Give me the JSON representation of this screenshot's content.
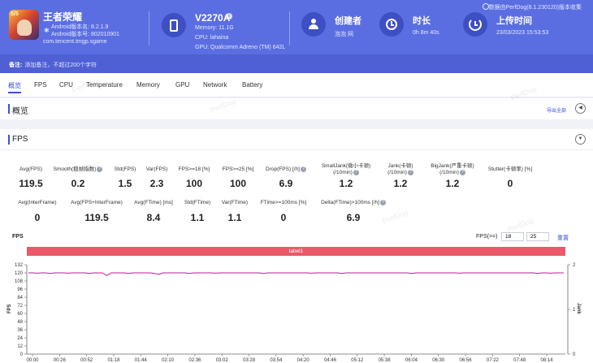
{
  "app": {
    "name": "王者荣耀",
    "icon_badge": "5/5",
    "android_version": "Android版本名: 8.2.1.9",
    "android_code": "Android版本号: 802010901",
    "package": "com.tencent.tmgp.sgame"
  },
  "device": {
    "name": "V2270A",
    "memory": "Memory: 11.1G",
    "cpu": "CPU: lahaina",
    "gpu": "GPU: Qualcomm Adreno (TM) 642L"
  },
  "creator": {
    "label": "创建者",
    "value": "泡泡 网"
  },
  "duration": {
    "label": "时长",
    "value": "0h 8m 40s"
  },
  "upload": {
    "label": "上传时间",
    "value": "23/03/2023 15:53:53"
  },
  "top_note": "数据由PerfDog(8.1.230120)版本收集",
  "remark": {
    "label": "备注:",
    "text": "添加备注，不超过200个字符"
  },
  "tabs": [
    "概览",
    "FPS",
    "CPU",
    "Temperature",
    "Memory",
    "GPU",
    "Network",
    "Battery"
  ],
  "overview": {
    "title": "概览",
    "export": "导出全部"
  },
  "fps_section": {
    "title": "FPS",
    "metrics_row1": [
      {
        "label": "Avg(FPS)",
        "value": "119.5",
        "help": false
      },
      {
        "label": "Smooth(稳帧指数)",
        "value": "0.2",
        "help": true
      },
      {
        "label": "Std(FPS)",
        "value": "1.5",
        "help": false
      },
      {
        "label": "Var(FPS)",
        "value": "2.3",
        "help": false
      },
      {
        "label": "FPS>=18 [%]",
        "value": "100",
        "help": false
      },
      {
        "label": "FPS>=25 [%]",
        "value": "100",
        "help": false
      },
      {
        "label": "Drop(FPS) [/h]",
        "value": "6.9",
        "help": true
      },
      {
        "label": "SmallJank(微小卡顿)\n(/10min)",
        "value": "1.2",
        "help": true
      },
      {
        "label": "Jank(卡顿)\n(/10min)",
        "value": "1.2",
        "help": true
      },
      {
        "label": "BigJank(严重卡顿)\n(/10min)",
        "value": "1.2",
        "help": true
      },
      {
        "label": "Stutter(卡顿率) [%]",
        "value": "0",
        "help": false
      }
    ],
    "metrics_row2": [
      {
        "label": "Avg(InterFrame)",
        "value": "0",
        "help": false
      },
      {
        "label": "Avg(FPS+InterFrame)",
        "value": "119.5",
        "help": false
      },
      {
        "label": "Avg(FTime) [ms]",
        "value": "8.4",
        "help": false
      },
      {
        "label": "Std(FTime)",
        "value": "1.1",
        "help": false
      },
      {
        "label": "Var(FTime)",
        "value": "1.1",
        "help": false
      },
      {
        "label": "FTime>=100ms [%]",
        "value": "0",
        "help": false
      },
      {
        "label": "Delta(FTime)>100ms [/h]",
        "value": "6.9",
        "help": true
      }
    ],
    "chart_label": "FPS",
    "filter_label": "FPS(>=)",
    "filter_values": [
      "18",
      "25"
    ],
    "reset": "重置",
    "label_bar": "label1"
  },
  "watermark": "PerfDog",
  "colors": {
    "header": "#5b6ee1",
    "accent": "#3a52d6",
    "series": "#c2189b",
    "label_bar": "#e9596a"
  },
  "chart_data": {
    "type": "line",
    "title": "",
    "ylabel": "FPS",
    "y2label": "Jank",
    "ylim": [
      0,
      132
    ],
    "yticks": [
      0,
      12,
      24,
      36,
      48,
      60,
      72,
      84,
      96,
      108,
      120,
      132
    ],
    "y2lim": [
      0,
      2
    ],
    "y2ticks": [
      0,
      1,
      2
    ],
    "xticks": [
      "00:00",
      "00:26",
      "00:52",
      "01:18",
      "01:44",
      "02:10",
      "02:36",
      "03:02",
      "03:28",
      "03:54",
      "04:20",
      "04:46",
      "05:12",
      "05:38",
      "06:04",
      "06:30",
      "06:56",
      "07:22",
      "07:48",
      "08:14"
    ],
    "series": [
      {
        "values": [
          120,
          120,
          119.5,
          120,
          120,
          119,
          120,
          120,
          120,
          119.5,
          120,
          120,
          120,
          120,
          119,
          120,
          120,
          120,
          116,
          120,
          120,
          120,
          120,
          119,
          120,
          120,
          120,
          120,
          120,
          119,
          118,
          120,
          120,
          120,
          120,
          120,
          120,
          119,
          120,
          120,
          120,
          120,
          120,
          119.5,
          120,
          120,
          120,
          120,
          120,
          120,
          120,
          120,
          120,
          120,
          119,
          120,
          120,
          120,
          120,
          120,
          120,
          120,
          120,
          120,
          120,
          119.5,
          120,
          120,
          120,
          120,
          120,
          120,
          119,
          120,
          120,
          120,
          120,
          120,
          120,
          120,
          120,
          120,
          120,
          120,
          120,
          120,
          120,
          120,
          119,
          120,
          120,
          120,
          120,
          120,
          120,
          120,
          120,
          120,
          120,
          119.5,
          120,
          120,
          120,
          120,
          120,
          120,
          120,
          120,
          120,
          120,
          120,
          120,
          120,
          120,
          120,
          120,
          120,
          119,
          120,
          120,
          119.5,
          120,
          120,
          120
        ]
      }
    ]
  }
}
